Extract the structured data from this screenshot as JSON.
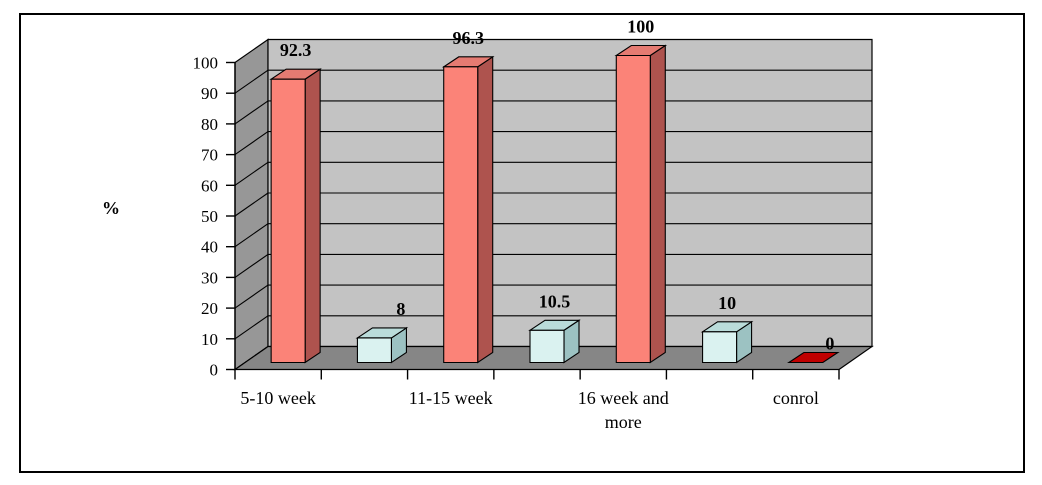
{
  "figure": {
    "background": "#FFFFFF",
    "border_color": "#000000"
  },
  "chart_data": {
    "type": "bar",
    "subtype": "3d-column",
    "title": "",
    "xlabel": "",
    "ylabel": "%",
    "ylim": [
      0,
      100
    ],
    "ytick_step": 10,
    "yticks": [
      "0",
      "10",
      "20",
      "30",
      "40",
      "50",
      "60",
      "70",
      "80",
      "90",
      "100"
    ],
    "grid": "horizontal-back-wall",
    "legend": "none",
    "categories": [
      "5-10 week",
      "11-15 week",
      "16 week and more",
      "conrol"
    ],
    "points": [
      {
        "category": "5-10 week",
        "value": 92.3,
        "data_label": "92.3",
        "color_key": "salmon",
        "label_lines": [
          "5-10 week"
        ]
      },
      {
        "category": "",
        "value": 8,
        "data_label": "8",
        "color_key": "cyan",
        "label_lines": []
      },
      {
        "category": "11-15 week",
        "value": 96.3,
        "data_label": "96.3",
        "color_key": "salmon",
        "label_lines": [
          "11-15 week"
        ]
      },
      {
        "category": "",
        "value": 10.5,
        "data_label": "10.5",
        "color_key": "cyan",
        "label_lines": []
      },
      {
        "category": "16 week and more",
        "value": 100,
        "data_label": "100",
        "color_key": "salmon",
        "label_lines": [
          "16 week and",
          "more"
        ]
      },
      {
        "category": "",
        "value": 10,
        "data_label": "10",
        "color_key": "cyan",
        "label_lines": []
      },
      {
        "category": "conrol",
        "value": 0,
        "data_label": "0",
        "color_key": "darkred",
        "label_lines": [
          "conrol"
        ]
      }
    ]
  },
  "colors": {
    "salmon": {
      "front": "#FB8378",
      "top": "#E57B72",
      "side": "#AE534E"
    },
    "cyan": {
      "front": "#DAF2F0",
      "top": "#BADCDA",
      "side": "#9CC2C2"
    },
    "darkred": {
      "front": "#C00000",
      "top": "#C00000",
      "side": "#8B0000"
    },
    "back_wall": "#C3C3C3",
    "side_wall": "#979797",
    "floor": "#868686",
    "line": "#000000",
    "text": "#000000",
    "background": "#FFFFFF"
  }
}
